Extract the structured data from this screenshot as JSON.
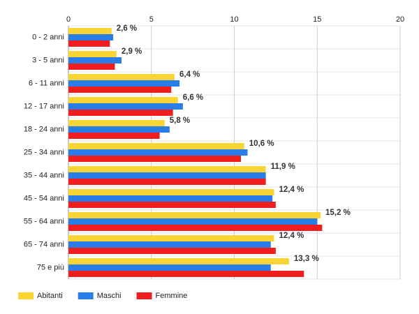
{
  "chart_data": {
    "type": "bar",
    "orientation": "horizontal",
    "categories": [
      "0 - 2 anni",
      "3 - 5 anni",
      "6 - 11 anni",
      "12 - 17 anni",
      "18 - 24 anni",
      "25 - 34 anni",
      "35 - 44 anni",
      "45 - 54 anni",
      "55 - 64 anni",
      "65 - 74 anni",
      "75 e più"
    ],
    "series": [
      {
        "name": "Abitanti",
        "color": "#f9d435",
        "values": [
          2.6,
          2.9,
          6.4,
          6.6,
          5.8,
          10.6,
          11.9,
          12.4,
          15.2,
          12.4,
          13.3
        ],
        "value_labels": [
          "2,6 %",
          "2,9 %",
          "6,4 %",
          "6,6 %",
          "5,8 %",
          "10,6 %",
          "11,9 %",
          "12,4 %",
          "15,2 %",
          "12,4 %",
          "13,3 %"
        ]
      },
      {
        "name": "Maschi",
        "color": "#2a7de6",
        "values": [
          2.7,
          3.2,
          6.7,
          6.9,
          6.1,
          10.8,
          11.9,
          12.3,
          15.0,
          12.2,
          12.2
        ]
      },
      {
        "name": "Femmine",
        "color": "#f01e1e",
        "values": [
          2.5,
          2.8,
          6.2,
          6.3,
          5.5,
          10.4,
          11.9,
          12.5,
          15.3,
          12.5,
          14.2
        ]
      }
    ],
    "xlim": [
      0,
      20
    ],
    "xticks": [
      0,
      5,
      10,
      15,
      20
    ],
    "grid": true,
    "legend": "bottom-left"
  }
}
